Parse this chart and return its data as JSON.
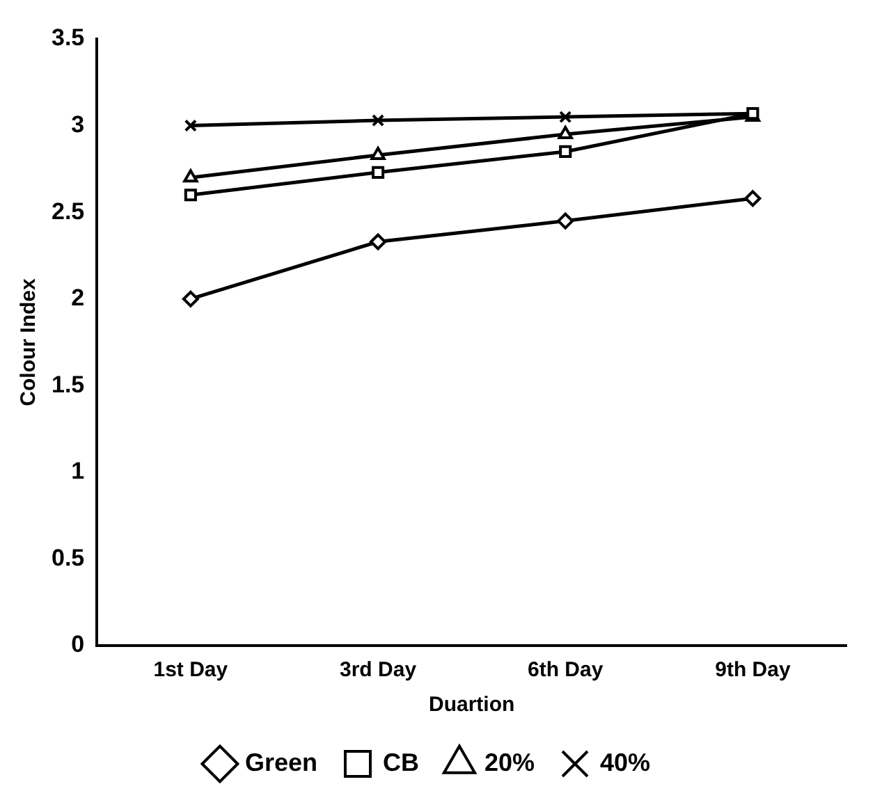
{
  "chart_data": {
    "type": "line",
    "xlabel": "Duartion",
    "ylabel": "Colour Index",
    "categories": [
      "1st Day",
      "3rd Day",
      "6th Day",
      "9th Day"
    ],
    "series": [
      {
        "name": "Green",
        "color": "#000000",
        "marker": "diamond",
        "values": [
          2.0,
          2.33,
          2.45,
          2.58
        ]
      },
      {
        "name": "CB",
        "color": "#000000",
        "marker": "square",
        "values": [
          2.6,
          2.73,
          2.85,
          3.07
        ]
      },
      {
        "name": "20%",
        "color": "#000000",
        "marker": "triangle",
        "values": [
          2.7,
          2.83,
          2.95,
          3.05
        ]
      },
      {
        "name": "40%",
        "color": "#000000",
        "marker": "cross",
        "values": [
          3.0,
          3.03,
          3.05,
          3.07
        ]
      }
    ],
    "ylim": [
      0,
      3.5
    ],
    "yticks": [
      0,
      0.5,
      1,
      1.5,
      2,
      2.5,
      3,
      3.5
    ],
    "grid": false,
    "legend": "bottom"
  }
}
